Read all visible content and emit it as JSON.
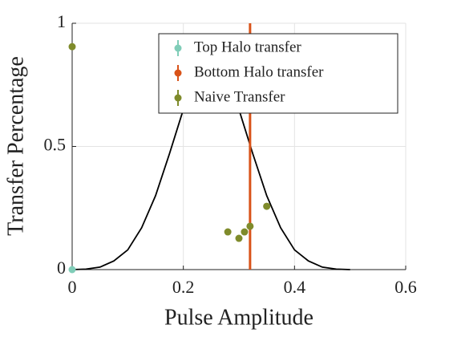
{
  "chart_data": {
    "type": "scatter",
    "xlabel": "Pulse Amplitude",
    "ylabel": "Transfer Percentage",
    "xlim": [
      0,
      0.6
    ],
    "ylim": [
      0,
      1
    ],
    "xticks": [
      0,
      0.2,
      0.4,
      0.6
    ],
    "yticks": [
      0,
      0.5,
      1
    ],
    "grid": true,
    "legend": "upper right",
    "curve": {
      "color": "#000000",
      "x": [
        0,
        0.025,
        0.05,
        0.075,
        0.1,
        0.125,
        0.15,
        0.175,
        0.2,
        0.225,
        0.25,
        0.275,
        0.3,
        0.325,
        0.35,
        0.375,
        0.4,
        0.425,
        0.45,
        0.475,
        0.5
      ],
      "values": [
        0,
        0.002,
        0.01,
        0.035,
        0.08,
        0.17,
        0.3,
        0.47,
        0.65,
        0.85,
        0.95,
        0.85,
        0.65,
        0.47,
        0.3,
        0.17,
        0.08,
        0.035,
        0.01,
        0.002,
        0
      ]
    },
    "series": [
      {
        "name": "Top Halo transfer",
        "color": "#80cdb8",
        "style": "points",
        "x": [
          0
        ],
        "values": [
          0
        ]
      },
      {
        "name": "Bottom Halo transfer",
        "color": "#d95319",
        "style": "vline",
        "x": [
          0.32,
          0.32
        ],
        "values": [
          0,
          1
        ]
      },
      {
        "name": "Naive Transfer",
        "color": "#7f8b2b",
        "style": "points",
        "x": [
          0,
          0.28,
          0.3,
          0.31,
          0.32,
          0.35
        ],
        "values": [
          0.905,
          0.153,
          0.127,
          0.153,
          0.176,
          0.257
        ]
      }
    ]
  }
}
